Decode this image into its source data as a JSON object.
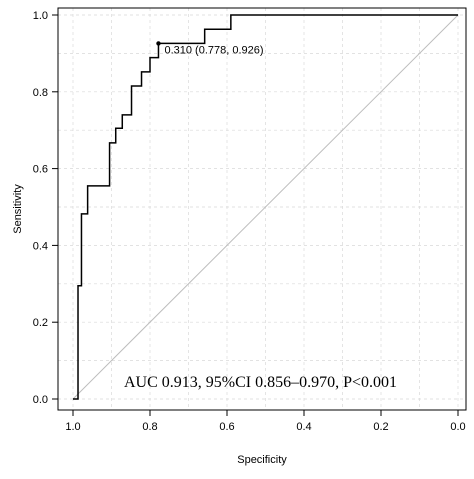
{
  "chart_data": {
    "type": "line",
    "title": "",
    "xlabel": "Specificity",
    "ylabel": "Sensitivity",
    "x_reversed": true,
    "xlim": [
      1.0,
      0.0
    ],
    "ylim": [
      0.0,
      1.0
    ],
    "x_ticks": [
      1.0,
      0.8,
      0.6,
      0.4,
      0.2,
      0.0
    ],
    "x_tick_labels": [
      "1.0",
      "0.8",
      "0.6",
      "0.4",
      "0.2",
      "0.0"
    ],
    "y_ticks": [
      0.0,
      0.2,
      0.4,
      0.6,
      0.8,
      1.0
    ],
    "y_tick_labels": [
      "0.0",
      "0.2",
      "0.4",
      "0.6",
      "0.8",
      "1.0"
    ],
    "grid": true,
    "reference_line": {
      "from": [
        1.0,
        0.0
      ],
      "to": [
        0.0,
        1.0
      ],
      "color": "#bdbdbd"
    },
    "series": [
      {
        "color": "#000000",
        "x": [
          1.0,
          0.987,
          0.987,
          0.978,
          0.978,
          0.962,
          0.962,
          0.905,
          0.905,
          0.889,
          0.889,
          0.872,
          0.872,
          0.848,
          0.848,
          0.822,
          0.822,
          0.8,
          0.8,
          0.778,
          0.778,
          0.658,
          0.658,
          0.59,
          0.59,
          0.0
        ],
        "y": [
          0.0,
          0.0,
          0.295,
          0.295,
          0.482,
          0.482,
          0.555,
          0.555,
          0.667,
          0.667,
          0.705,
          0.705,
          0.74,
          0.74,
          0.815,
          0.815,
          0.852,
          0.852,
          0.889,
          0.889,
          0.926,
          0.926,
          0.963,
          0.963,
          1.0,
          1.0
        ]
      }
    ],
    "threshold_point": {
      "x": 0.778,
      "y": 0.926,
      "label": "0.310 (0.778, 0.926)"
    },
    "annotation": "AUC 0.913, 95%CI 0.856–0.970, P<0.001"
  }
}
